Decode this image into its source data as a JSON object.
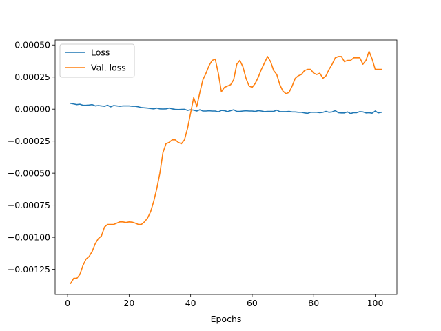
{
  "chart_data": {
    "type": "line",
    "title": "",
    "xlabel": "Epochs",
    "ylabel": "",
    "xlim": [
      -4.05,
      107.05
    ],
    "ylim": [
      -0.001446,
      0.000539
    ],
    "x_ticks": [
      0,
      20,
      40,
      60,
      80,
      100
    ],
    "x_tick_labels": [
      "0",
      "20",
      "40",
      "60",
      "80",
      "100"
    ],
    "y_ticks": [
      -0.00125,
      -0.001,
      -0.00075,
      -0.0005,
      -0.00025,
      0,
      0.00025,
      0.0005
    ],
    "y_tick_labels": [
      "−0.00125",
      "−0.00100",
      "−0.00075",
      "−0.00050",
      "−0.00025",
      "0.00000",
      "0.00025",
      "0.00050"
    ],
    "grid": false,
    "legend_position": "top-left",
    "series": [
      {
        "name": "Loss",
        "color": "#1f77b4",
        "x": [
          1,
          2,
          3,
          4,
          5,
          6,
          7,
          8,
          9,
          10,
          11,
          12,
          13,
          14,
          15,
          16,
          17,
          18,
          19,
          20,
          21,
          22,
          23,
          24,
          25,
          26,
          27,
          28,
          29,
          30,
          31,
          32,
          33,
          34,
          35,
          36,
          37,
          38,
          39,
          40,
          41,
          42,
          43,
          44,
          45,
          46,
          47,
          48,
          49,
          50,
          51,
          52,
          53,
          54,
          55,
          56,
          57,
          58,
          59,
          60,
          61,
          62,
          63,
          64,
          65,
          66,
          67,
          68,
          69,
          70,
          71,
          72,
          73,
          74,
          75,
          76,
          77,
          78,
          79,
          80,
          81,
          82,
          83,
          84,
          85,
          86,
          87,
          88,
          89,
          90,
          91,
          92,
          93,
          94,
          95,
          96,
          97,
          98,
          99,
          100,
          101,
          102
        ],
        "y": [
          4.5e-05,
          4e-05,
          3.5e-05,
          3.8e-05,
          3e-05,
          3e-05,
          3.2e-05,
          3.5e-05,
          2.5e-05,
          2.8e-05,
          2.5e-05,
          2.2e-05,
          3e-05,
          1.8e-05,
          2.8e-05,
          2.5e-05,
          2.2e-05,
          2.5e-05,
          2.5e-05,
          2.5e-05,
          2.2e-05,
          2.2e-05,
          1.8e-05,
          1.2e-05,
          1e-05,
          8e-06,
          5e-06,
          2e-06,
          8e-06,
          2e-06,
          1e-06,
          2e-06,
          8e-06,
          2e-06,
          -2e-06,
          -3e-06,
          -2e-06,
          -1e-06,
          -1e-05,
          -5e-06,
          -8e-06,
          -1.5e-05,
          -5e-06,
          -1.5e-05,
          -1.5e-05,
          -1.3e-05,
          -1.5e-05,
          -1.5e-05,
          -2.2e-05,
          -1e-05,
          -1.2e-05,
          -2e-05,
          -1.2e-05,
          -5e-06,
          -1.8e-05,
          -1.8e-05,
          -1.5e-05,
          -1.3e-05,
          -1.5e-05,
          -1.5e-05,
          -1.8e-05,
          -1.2e-05,
          -1.5e-05,
          -2e-05,
          -1.8e-05,
          -1.8e-05,
          -1.8e-05,
          -8e-06,
          -2e-05,
          -2e-05,
          -2e-05,
          -1.8e-05,
          -2.2e-05,
          -2.2e-05,
          -2.5e-05,
          -2.5e-05,
          -3e-05,
          -3.3e-05,
          -2.5e-05,
          -2.5e-05,
          -2.5e-05,
          -2.8e-05,
          -2.5e-05,
          -1.8e-05,
          -2.5e-05,
          -2.2e-05,
          -1.2e-05,
          -2.8e-05,
          -3e-05,
          -3e-05,
          -2.2e-05,
          -3.5e-05,
          -2.8e-05,
          -2.8e-05,
          -2e-05,
          -2.2e-05,
          -3e-05,
          -2.8e-05,
          -3.2e-05,
          -1.5e-05,
          -3e-05,
          -2.5e-05
        ]
      },
      {
        "name": "Val. loss",
        "color": "#ff7f0e",
        "x": [
          1,
          2,
          3,
          4,
          5,
          6,
          7,
          8,
          9,
          10,
          11,
          12,
          13,
          14,
          15,
          16,
          17,
          18,
          19,
          20,
          21,
          22,
          23,
          24,
          25,
          26,
          27,
          28,
          29,
          30,
          31,
          32,
          33,
          34,
          35,
          36,
          37,
          38,
          39,
          40,
          41,
          42,
          43,
          44,
          45,
          46,
          47,
          48,
          49,
          50,
          51,
          52,
          53,
          54,
          55,
          56,
          57,
          58,
          59,
          60,
          61,
          62,
          63,
          64,
          65,
          66,
          67,
          68,
          69,
          70,
          71,
          72,
          73,
          74,
          75,
          76,
          77,
          78,
          79,
          80,
          81,
          82,
          83,
          84,
          85,
          86,
          87,
          88,
          89,
          90,
          91,
          92,
          93,
          94,
          95,
          96,
          97,
          98,
          99,
          100,
          101,
          102
        ],
        "y": [
          -0.00136,
          -0.00132,
          -0.00132,
          -0.00129,
          -0.00122,
          -0.00117,
          -0.00115,
          -0.00111,
          -0.00105,
          -0.00101,
          -0.00099,
          -0.00092,
          -0.0009,
          -0.0009,
          -0.0009,
          -0.00089,
          -0.00088,
          -0.00088,
          -0.000885,
          -0.00088,
          -0.000882,
          -0.00089,
          -0.0009,
          -0.0009,
          -0.00088,
          -0.00085,
          -0.0008,
          -0.00072,
          -0.00062,
          -0.0005,
          -0.00034,
          -0.00027,
          -0.00026,
          -0.00024,
          -0.00024,
          -0.00026,
          -0.00027,
          -0.00024,
          -0.00015,
          -3e-05,
          9e-05,
          2e-05,
          0.00013,
          0.00023,
          0.00028,
          0.00034,
          0.00038,
          0.00039,
          0.00028,
          0.000135,
          0.00017,
          0.00018,
          0.00019,
          0.00023,
          0.00035,
          0.00038,
          0.00033,
          0.00024,
          0.00018,
          0.00017,
          0.0002,
          0.00025,
          0.00031,
          0.00036,
          0.00041,
          0.00037,
          0.0003,
          0.00027,
          0.00019,
          0.00014,
          0.00012,
          0.00013,
          0.00018,
          0.00024,
          0.00026,
          0.00027,
          0.0003,
          0.00031,
          0.00031,
          0.00028,
          0.00027,
          0.00028,
          0.00024,
          0.00026,
          0.00031,
          0.00035,
          0.0004,
          0.00041,
          0.00041,
          0.00037,
          0.00038,
          0.00038,
          0.0004,
          0.0004,
          0.0004,
          0.00035,
          0.00038,
          0.00045,
          0.00039,
          0.00031,
          0.00031,
          0.00031
        ]
      }
    ]
  }
}
